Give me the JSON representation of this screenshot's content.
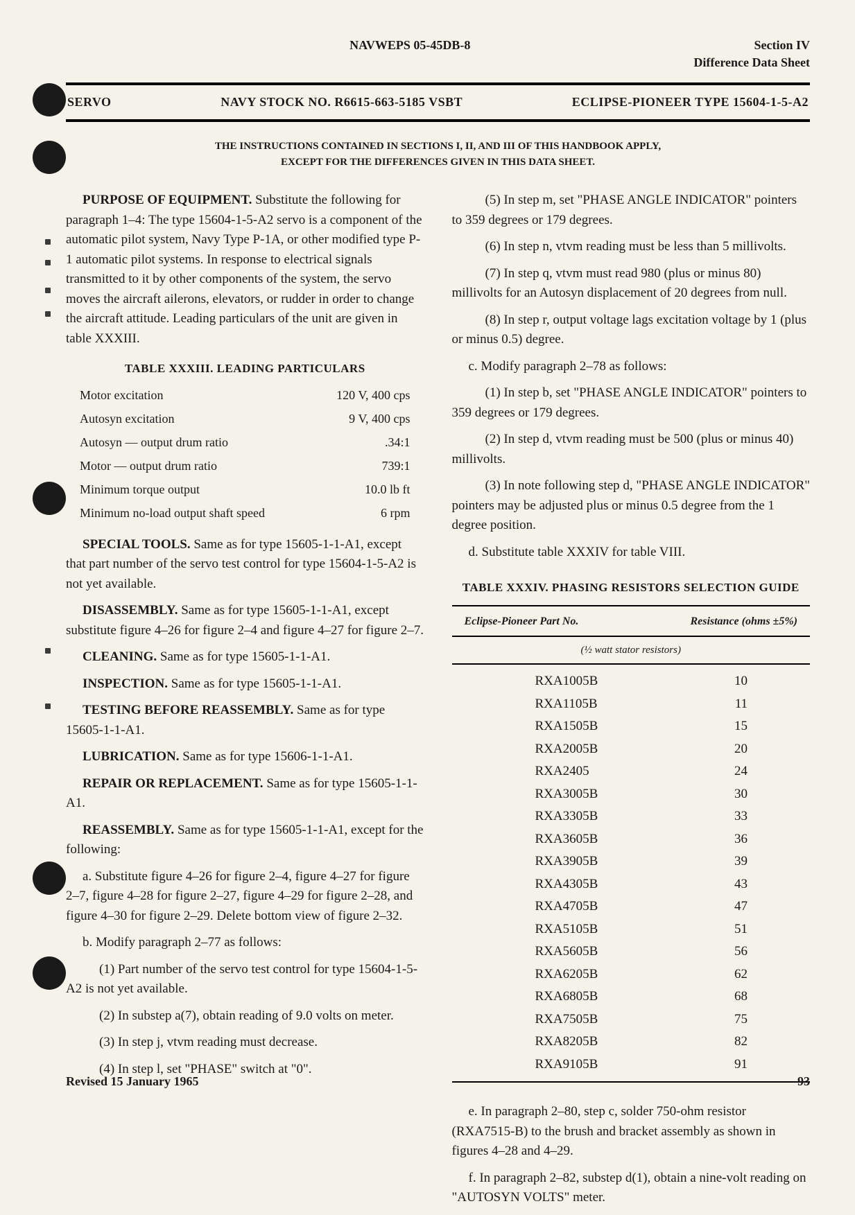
{
  "header": {
    "doc_id": "NAVWEPS 05-45DB-8",
    "section": "Section IV",
    "subtitle": "Difference Data Sheet"
  },
  "title_bar": {
    "servo": "SERVO",
    "stock": "NAVY STOCK NO. R6615-663-5185 VSBT",
    "type": "ECLIPSE-PIONEER TYPE 15604-1-5-A2"
  },
  "instructions": {
    "line1": "THE INSTRUCTIONS CONTAINED IN SECTIONS I, II, AND III OF THIS HANDBOOK APPLY,",
    "line2": "EXCEPT FOR THE DIFFERENCES GIVEN IN THIS DATA SHEET."
  },
  "left_col": {
    "purpose": {
      "heading": "PURPOSE OF EQUIPMENT.",
      "text": " Substitute the following for paragraph 1–4: The type 15604-1-5-A2 servo is a component of the automatic pilot system, Navy Type P-1A, or other modified type P-1 automatic pilot systems. In response to electrical signals transmitted to it by other components of the system, the servo moves the aircraft ailerons, elevators, or rudder in order to change the aircraft attitude. Leading particulars of the unit are given in table XXXIII."
    },
    "table33_title": "TABLE XXXIII. LEADING PARTICULARS",
    "table33": [
      {
        "label": "Motor excitation",
        "value": "120 V, 400 cps"
      },
      {
        "label": "Autosyn excitation",
        "value": "9 V, 400 cps"
      },
      {
        "label": "Autosyn — output drum ratio",
        "value": ".34:1"
      },
      {
        "label": "Motor — output drum ratio",
        "value": "739:1"
      },
      {
        "label": "Minimum torque output",
        "value": "10.0 lb ft"
      },
      {
        "label": "Minimum no-load output shaft speed",
        "value": "6 rpm"
      }
    ],
    "special_tools": {
      "heading": "SPECIAL TOOLS.",
      "text": " Same as for type 15605-1-1-A1, except that part number of the servo test control for type 15604-1-5-A2 is not yet available."
    },
    "disassembly": {
      "heading": "DISASSEMBLY.",
      "text": " Same as for type 15605-1-1-A1, except substitute figure 4–26 for figure 2–4 and figure 4–27 for figure 2–7."
    },
    "cleaning": {
      "heading": "CLEANING.",
      "text": " Same as for type 15605-1-1-A1."
    },
    "inspection": {
      "heading": "INSPECTION.",
      "text": " Same as for type 15605-1-1-A1."
    },
    "testing": {
      "heading": "TESTING BEFORE REASSEMBLY.",
      "text": " Same as for type 15605-1-1-A1."
    },
    "lubrication": {
      "heading": "LUBRICATION.",
      "text": " Same as for type 15606-1-1-A1."
    },
    "repair": {
      "heading": "REPAIR OR REPLACEMENT.",
      "text": " Same as for type 15605-1-1-A1."
    },
    "reassembly": {
      "heading": "REASSEMBLY.",
      "text": " Same as for type 15605-1-1-A1, except for the following:"
    },
    "reassembly_a": "a. Substitute figure 4–26 for figure 2–4, figure 4–27 for figure 2–7, figure 4–28 for figure 2–27, figure 4–29 for figure 2–28, and figure 4–30 for figure 2–29. Delete bottom view of figure 2–32.",
    "reassembly_b": "b. Modify paragraph 2–77 as follows:",
    "reassembly_b1": "(1) Part number of the servo test control for type 15604-1-5-A2 is not yet available.",
    "reassembly_b2": "(2) In substep a(7), obtain reading of 9.0 volts on meter.",
    "reassembly_b3": "(3) In step j, vtvm reading must decrease.",
    "reassembly_b4": "(4) In step l, set \"PHASE\" switch at \"0\"."
  },
  "right_col": {
    "r5": "(5) In step m, set \"PHASE ANGLE INDICATOR\" pointers to 359 degrees or 179 degrees.",
    "r6": "(6) In step n, vtvm reading must be less than 5 millivolts.",
    "r7": "(7) In step q, vtvm must read 980 (plus or minus 80) millivolts for an Autosyn displacement of 20 degrees from null.",
    "r8": "(8) In step r, output voltage lags excitation voltage by 1 (plus or minus 0.5) degree.",
    "rc": "c. Modify paragraph 2–78 as follows:",
    "rc1": "(1) In step b, set \"PHASE ANGLE INDICATOR\" pointers to 359 degrees or 179 degrees.",
    "rc2": "(2) In step d, vtvm reading must be 500 (plus or minus 40) millivolts.",
    "rc3": "(3) In note following step d, \"PHASE ANGLE INDICATOR\" pointers may be adjusted plus or minus 0.5 degree from the 1 degree position.",
    "rd": "d. Substitute table XXXIV for table VIII.",
    "table34_title": "TABLE XXXIV. PHASING RESISTORS SELECTION GUIDE",
    "table34_hdr_left": "Eclipse-Pioneer Part No.",
    "table34_hdr_right": "Resistance (ohms ±5%)",
    "table34_sub": "(½ watt stator resistors)",
    "table34": [
      {
        "pn": "RXA1005B",
        "r": "10"
      },
      {
        "pn": "RXA1105B",
        "r": "11"
      },
      {
        "pn": "RXA1505B",
        "r": "15"
      },
      {
        "pn": "RXA2005B",
        "r": "20"
      },
      {
        "pn": "RXA2405",
        "r": "24"
      },
      {
        "pn": "RXA3005B",
        "r": "30"
      },
      {
        "pn": "RXA3305B",
        "r": "33"
      },
      {
        "pn": "RXA3605B",
        "r": "36"
      },
      {
        "pn": "RXA3905B",
        "r": "39"
      },
      {
        "pn": "RXA4305B",
        "r": "43"
      },
      {
        "pn": "RXA4705B",
        "r": "47"
      },
      {
        "pn": "RXA5105B",
        "r": "51"
      },
      {
        "pn": "RXA5605B",
        "r": "56"
      },
      {
        "pn": "RXA6205B",
        "r": "62"
      },
      {
        "pn": "RXA6805B",
        "r": "68"
      },
      {
        "pn": "RXA7505B",
        "r": "75"
      },
      {
        "pn": "RXA8205B",
        "r": "82"
      },
      {
        "pn": "RXA9105B",
        "r": "91"
      }
    ],
    "re": "e. In paragraph 2–80, step c, solder 750-ohm resistor (RXA7515-B) to the brush and bracket assembly as shown in figures 4–28 and 4–29.",
    "rf": "f. In paragraph 2–82, substep d(1), obtain a nine-volt reading on \"AUTOSYN VOLTS\" meter."
  },
  "footer": {
    "revised": "Revised 15 January 1965",
    "page": "93"
  }
}
